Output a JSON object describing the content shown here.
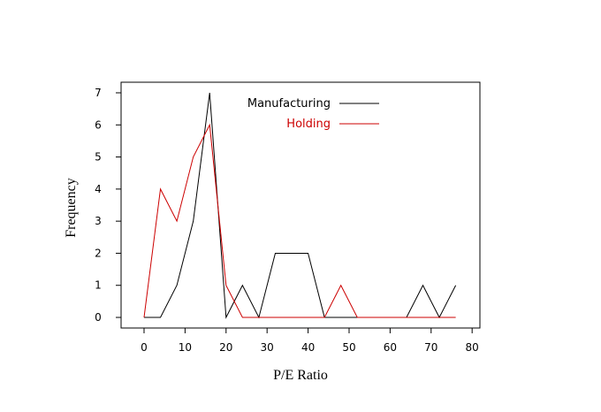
{
  "chart_data": {
    "type": "line",
    "x_label": "P/E Ratio",
    "y_label": "Frequency",
    "x": [
      0,
      4,
      8,
      12,
      16,
      20,
      24,
      28,
      32,
      36,
      40,
      44,
      48,
      52,
      56,
      60,
      64,
      68,
      72,
      76
    ],
    "series": [
      {
        "name": "Manufacturing",
        "color": "#000000",
        "values": [
          0,
          0,
          1,
          3,
          7,
          0,
          1,
          0,
          2,
          2,
          2,
          0,
          0,
          0,
          0,
          0,
          0,
          1,
          0,
          1
        ]
      },
      {
        "name": "Holding",
        "color": "#cc0000",
        "values": [
          0,
          4,
          3,
          5,
          6,
          1,
          0,
          0,
          0,
          0,
          0,
          0,
          1,
          0,
          0,
          0,
          0,
          0,
          0,
          0
        ]
      }
    ],
    "xlim": [
      -5.6,
      81.9
    ],
    "ylim": [
      -0.33,
      7.33
    ],
    "xticks": [
      0,
      10,
      20,
      30,
      40,
      50,
      60,
      70,
      80
    ],
    "yticks": [
      0,
      1,
      2,
      3,
      4,
      5,
      6,
      7
    ]
  }
}
